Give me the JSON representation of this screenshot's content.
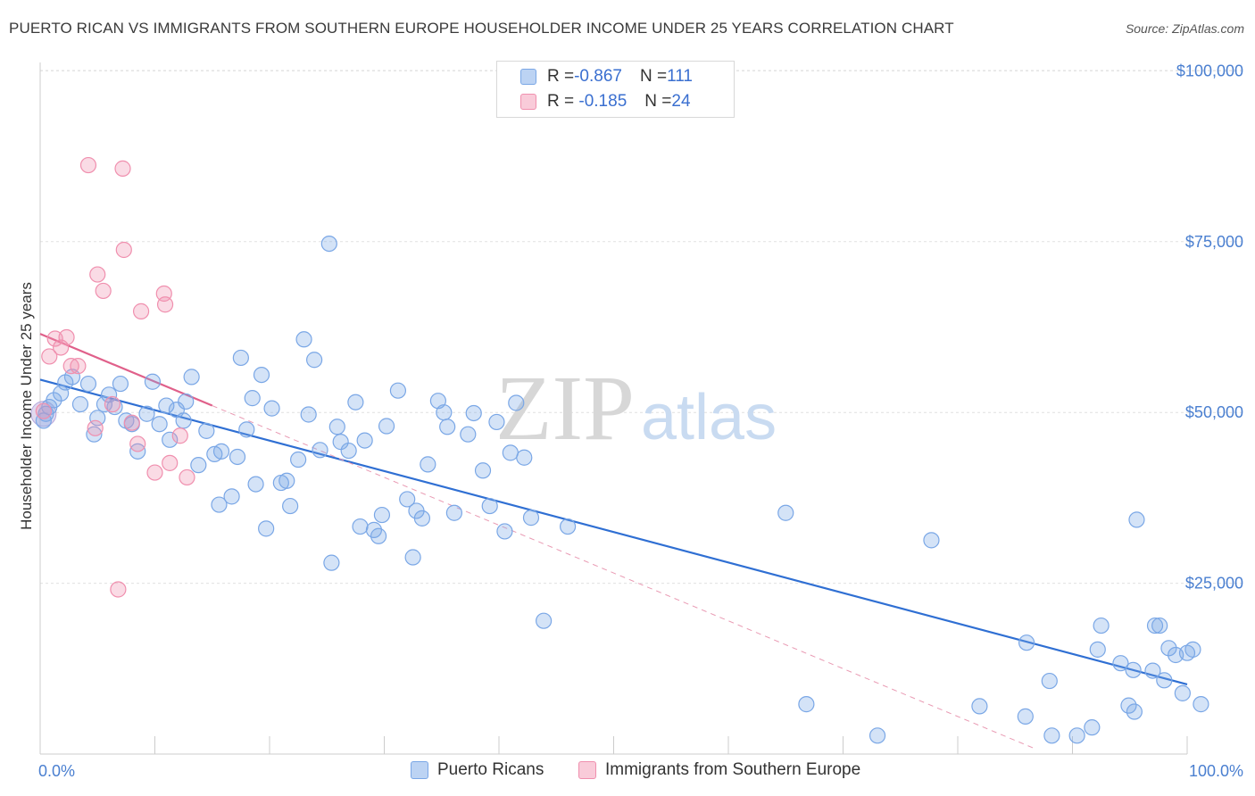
{
  "title": "PUERTO RICAN VS IMMIGRANTS FROM SOUTHERN EUROPE HOUSEHOLDER INCOME UNDER 25 YEARS CORRELATION CHART",
  "source": "Source: ZipAtlas.com",
  "watermark": {
    "zip": "ZIP",
    "atlas": "atlas"
  },
  "legend": {
    "rows": [
      {
        "r_label": "R = ",
        "r_value": "-0.867",
        "n_label": "N = ",
        "n_value": "111",
        "color": "#7aa7e6"
      },
      {
        "r_label": "R = ",
        "r_value": " -0.185",
        "n_label": "N = ",
        "n_value": "24",
        "color": "#f08fae"
      }
    ]
  },
  "bottom_legend": [
    "Puerto Ricans",
    "Immigrants from Southern Europe"
  ],
  "chart_data": {
    "type": "scatter",
    "title": "PUERTO RICAN VS IMMIGRANTS FROM SOUTHERN EUROPE HOUSEHOLDER INCOME UNDER 25 YEARS CORRELATION CHART",
    "xlabel": "",
    "ylabel": "Householder Income Under 25 years",
    "x_tick_labels": [
      "0.0%",
      "100.0%"
    ],
    "y_tick_labels": [
      "$100,000",
      "$75,000",
      "$50,000",
      "$25,000"
    ],
    "y_ticks": [
      100000,
      75000,
      50000,
      25000
    ],
    "xlim": [
      0,
      100
    ],
    "ylim": [
      0,
      102500
    ],
    "grid": true,
    "legend_position": "top-center",
    "series": [
      {
        "name": "Puerto Ricans",
        "color": "#7aa7e6",
        "trend": {
          "x": [
            0,
            100
          ],
          "y": [
            54800,
            10200
          ]
        },
        "points": [
          [
            0.3,
            48800
          ],
          [
            0.5,
            49800
          ],
          [
            0.8,
            50800
          ],
          [
            1.2,
            51800
          ],
          [
            1.8,
            52800
          ],
          [
            2.2,
            54400
          ],
          [
            2.8,
            55200
          ],
          [
            3.5,
            51200
          ],
          [
            4.2,
            54200
          ],
          [
            4.7,
            46800
          ],
          [
            5.0,
            49200
          ],
          [
            5.6,
            51200
          ],
          [
            6.0,
            52600
          ],
          [
            6.5,
            50800
          ],
          [
            7.0,
            54200
          ],
          [
            7.5,
            48800
          ],
          [
            8.0,
            48300
          ],
          [
            8.5,
            44300
          ],
          [
            9.3,
            49800
          ],
          [
            9.8,
            54500
          ],
          [
            10.4,
            48300
          ],
          [
            11.0,
            51000
          ],
          [
            11.3,
            46000
          ],
          [
            11.9,
            50400
          ],
          [
            12.5,
            48800
          ],
          [
            12.7,
            51600
          ],
          [
            13.2,
            55200
          ],
          [
            13.8,
            42300
          ],
          [
            14.5,
            47300
          ],
          [
            15.2,
            43900
          ],
          [
            15.6,
            36500
          ],
          [
            15.8,
            44300
          ],
          [
            16.7,
            37700
          ],
          [
            17.2,
            43500
          ],
          [
            17.5,
            58000
          ],
          [
            18.0,
            47500
          ],
          [
            18.5,
            52100
          ],
          [
            18.8,
            39500
          ],
          [
            19.3,
            55500
          ],
          [
            19.7,
            33000
          ],
          [
            20.2,
            50600
          ],
          [
            21.0,
            39700
          ],
          [
            21.5,
            40000
          ],
          [
            21.8,
            36300
          ],
          [
            22.5,
            43100
          ],
          [
            23.0,
            60700
          ],
          [
            23.4,
            49700
          ],
          [
            23.9,
            57700
          ],
          [
            24.4,
            44500
          ],
          [
            25.2,
            74700
          ],
          [
            25.4,
            28000
          ],
          [
            25.9,
            47900
          ],
          [
            26.2,
            45700
          ],
          [
            26.9,
            44400
          ],
          [
            27.5,
            51500
          ],
          [
            27.9,
            33300
          ],
          [
            28.3,
            45900
          ],
          [
            29.1,
            32800
          ],
          [
            29.5,
            31900
          ],
          [
            29.8,
            35000
          ],
          [
            30.2,
            48000
          ],
          [
            31.2,
            53200
          ],
          [
            32.0,
            37300
          ],
          [
            32.5,
            28800
          ],
          [
            32.8,
            35600
          ],
          [
            33.3,
            34500
          ],
          [
            33.8,
            42400
          ],
          [
            34.7,
            51700
          ],
          [
            35.2,
            50000
          ],
          [
            35.5,
            47900
          ],
          [
            36.1,
            35300
          ],
          [
            37.3,
            46800
          ],
          [
            37.8,
            49900
          ],
          [
            38.6,
            41500
          ],
          [
            39.2,
            36300
          ],
          [
            39.8,
            48600
          ],
          [
            40.5,
            32600
          ],
          [
            41.0,
            44100
          ],
          [
            41.5,
            51400
          ],
          [
            42.2,
            43400
          ],
          [
            42.8,
            34600
          ],
          [
            46.0,
            33300
          ],
          [
            43.9,
            19500
          ],
          [
            65.0,
            35300
          ],
          [
            66.8,
            7300
          ],
          [
            73.0,
            2700
          ],
          [
            77.7,
            31300
          ],
          [
            81.9,
            7000
          ],
          [
            85.9,
            5500
          ],
          [
            86.0,
            16300
          ],
          [
            88.0,
            10700
          ],
          [
            88.2,
            2700
          ],
          [
            90.4,
            2700
          ],
          [
            91.7,
            3900
          ],
          [
            92.2,
            15300
          ],
          [
            92.5,
            18800
          ],
          [
            94.2,
            13300
          ],
          [
            94.9,
            7100
          ],
          [
            95.3,
            12300
          ],
          [
            95.4,
            6200
          ],
          [
            95.6,
            34300
          ],
          [
            97.0,
            12200
          ],
          [
            97.2,
            18800
          ],
          [
            97.6,
            18800
          ],
          [
            98.0,
            10800
          ],
          [
            98.4,
            15500
          ],
          [
            99.0,
            14500
          ],
          [
            99.6,
            8900
          ],
          [
            100.0,
            14800
          ],
          [
            100.5,
            15300
          ],
          [
            101.2,
            7300
          ]
        ]
      },
      {
        "name": "Immigrants from Southern Europe",
        "color": "#f08fae",
        "trend": {
          "x": [
            0,
            15
          ],
          "y": [
            61500,
            51000
          ]
        },
        "points": [
          [
            0.3,
            50200
          ],
          [
            0.8,
            58200
          ],
          [
            1.3,
            60800
          ],
          [
            1.8,
            59500
          ],
          [
            2.3,
            61000
          ],
          [
            2.7,
            56800
          ],
          [
            3.3,
            56800
          ],
          [
            4.2,
            86200
          ],
          [
            4.8,
            47700
          ],
          [
            5.0,
            70200
          ],
          [
            5.5,
            67800
          ],
          [
            6.3,
            51200
          ],
          [
            6.8,
            24100
          ],
          [
            7.2,
            85700
          ],
          [
            7.3,
            73800
          ],
          [
            8.0,
            48500
          ],
          [
            8.5,
            45400
          ],
          [
            8.8,
            64800
          ],
          [
            10.0,
            41200
          ],
          [
            10.8,
            67400
          ],
          [
            10.9,
            65800
          ],
          [
            11.3,
            42600
          ],
          [
            12.2,
            46600
          ],
          [
            12.8,
            40500
          ]
        ]
      }
    ]
  }
}
